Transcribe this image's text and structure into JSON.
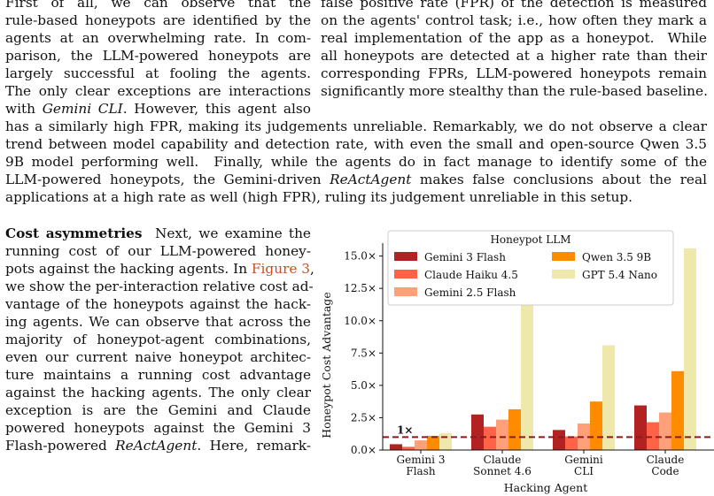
{
  "text": {
    "left_top": [
      "First of all, we can observe that the",
      "rule-based honeypots are identified by the",
      "agents at an overwhelming rate. In com-",
      "parison, the LLM-powered honeypots are",
      "largely successful at fooling the agents.",
      "The only clear exceptions are interactions"
    ],
    "left_top_last_pre": "with ",
    "left_top_last_em": "Gemini CLI",
    "left_top_last_post": ". However, this agent also",
    "right_top": [
      "false positive rate (FPR) of the detection is measured",
      "on the agents' control task; i.e., how often they mark a",
      "real implementation of the app as a honeypot.  While",
      "all honeypots are detected at a higher rate than their",
      "corresponding FPRs, LLM-powered honeypots remain",
      "significantly more stealthy than the rule-based baseline."
    ],
    "wide": [
      "has a similarly high FPR, making its judgements unreliable. Remarkably, we do not observe a clear",
      "trend between model capability and detection rate, with even the small and open-source Qwen 3.5",
      "9B model performing well.  Finally, while the agents do in fact manage to identify some of the"
    ],
    "wide4_pre": "LLM-powered honeypots, the Gemini-driven ",
    "wide4_em": "ReActAgent",
    "wide4_post": " makes false conclusions about the real",
    "wide5": "applications at a high rate as well (high FPR), ruling its judgement unreliable in this setup.",
    "cost_heading": "Cost asymmetries",
    "cost_first_rest": "  Next, we examine the",
    "cost_lines": [
      "running cost of our LLM-powered honey-"
    ],
    "cost_ref_pre": "pots against the hacking agents. In ",
    "cost_ref_link": "Figure 3",
    "cost_ref_post": ",",
    "cost_lines2": [
      "we show the per-interaction relative cost ad-",
      "vantage of the honeypots against the hack-",
      "ing agents. We can observe that across the",
      "majority of honeypot-agent combinations,",
      "even our current naive honeypot architec-",
      "ture maintains a running cost advantage",
      "against the hacking agents. The only clear",
      "exception is are the Gemini and Claude",
      "powered honeypots against the Gemini 3"
    ],
    "cost_last_pre": "Flash-powered ",
    "cost_last_em": "ReActAgent",
    "cost_last_post": ". Here, remark-"
  },
  "chart_data": {
    "type": "bar",
    "title": "",
    "xlabel": "Hacking Agent",
    "ylabel": "Honeypot Cost Advantage",
    "ylim": [
      0,
      16
    ],
    "yticks": [
      "0.0×",
      "2.5×",
      "5.0×",
      "7.5×",
      "10.0×",
      "12.5×",
      "15.0×"
    ],
    "ytick_values": [
      0,
      2.5,
      5,
      7.5,
      10,
      12.5,
      15
    ],
    "categories": [
      [
        "Gemini 3",
        "Flash"
      ],
      [
        "Claude",
        "Sonnet 4.6"
      ],
      [
        "Gemini",
        "CLI"
      ],
      [
        "Claude",
        "Code"
      ]
    ],
    "legend_title": "Honeypot LLM",
    "legend_position": "top-left",
    "series": [
      {
        "name": "Gemini 3 Flash",
        "color": "#b22222",
        "values": [
          0.45,
          2.75,
          1.55,
          3.45
        ]
      },
      {
        "name": "Claude Haiku 4.5",
        "color": "#ff6347",
        "values": [
          0.25,
          1.8,
          1.05,
          2.15
        ]
      },
      {
        "name": "Gemini 2.5 Flash",
        "color": "#ffa07a",
        "values": [
          0.75,
          2.35,
          2.05,
          2.9
        ]
      },
      {
        "name": "Qwen 3.5 9B",
        "color": "#ff8c00",
        "values": [
          1.1,
          3.15,
          3.75,
          6.1
        ]
      },
      {
        "name": "GPT 5.4 Nano",
        "color": "#eee8aa",
        "values": [
          1.3,
          11.4,
          8.1,
          15.6
        ]
      }
    ],
    "reference_line": {
      "value": 1,
      "label": "1×",
      "color": "#8b1a1a"
    },
    "grid": false
  }
}
